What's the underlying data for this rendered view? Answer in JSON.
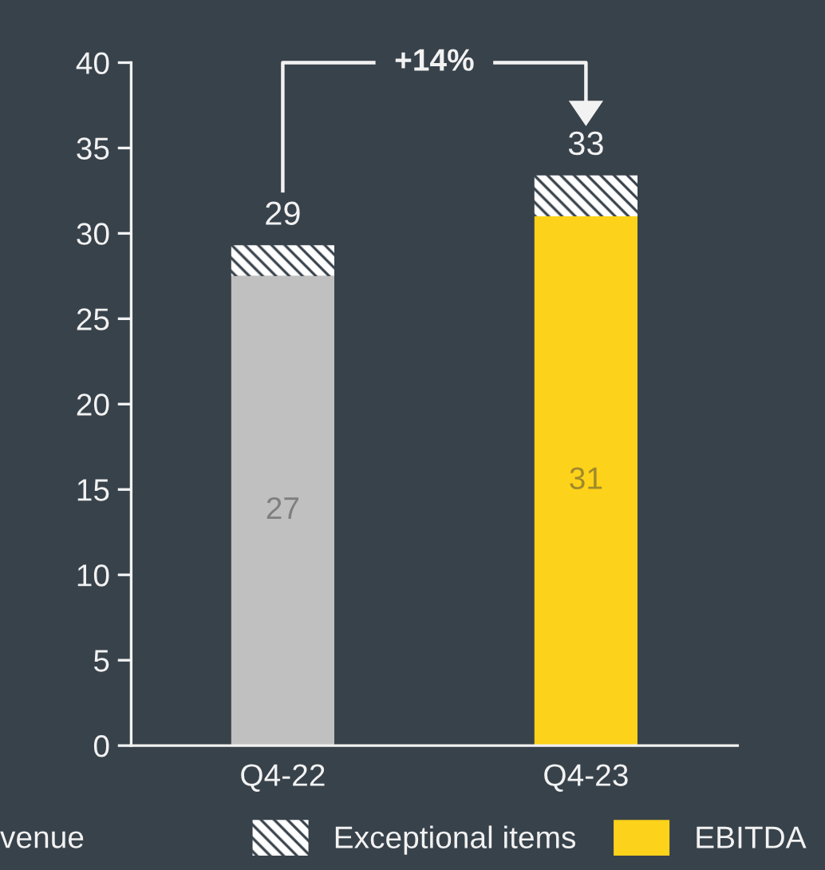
{
  "chart_data": {
    "type": "bar",
    "stacked": true,
    "categories": [
      "Q4-22",
      "Q4-23"
    ],
    "series": [
      {
        "name": "EBITDA",
        "color": "#fdd21a",
        "colors": [
          "#c0c0c0",
          "#fdd21a"
        ],
        "values": [
          27.5,
          31.0
        ],
        "value_labels": [
          "27",
          "31"
        ]
      },
      {
        "name": "Exceptional items",
        "color": "#ffffff",
        "values": [
          1.8,
          2.4
        ]
      }
    ],
    "totals": [
      "29",
      "33"
    ],
    "ylim": [
      0,
      40
    ],
    "yticks": [
      0,
      5,
      10,
      15,
      20,
      25,
      30,
      35,
      40
    ],
    "grid": false,
    "legend": "bottom",
    "annotations": [
      "+14%",
      "venue"
    ]
  }
}
